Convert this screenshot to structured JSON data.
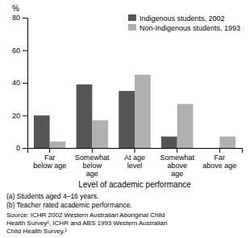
{
  "chart_data": {
    "type": "bar",
    "xlabel": "Level of academic performance",
    "ylabel": "%",
    "categories": [
      "Far\nbelow age",
      "Somewhat\nbelow\nage",
      "At age\nlevel",
      "Somewhat\nabove\nage",
      "Far\nabove age"
    ],
    "series": [
      {
        "name": "Indigenous students, 2002",
        "color": "#555555",
        "values": [
          20,
          39,
          35,
          7,
          0
        ]
      },
      {
        "name": "Non-Indigenous students, 1993",
        "color": "#b0b0b0",
        "values": [
          4,
          17,
          45,
          27,
          7
        ]
      }
    ],
    "ylim": [
      0,
      80
    ],
    "yticks": [
      0,
      20,
      40,
      60,
      80
    ],
    "grid": false,
    "legend": "upper right",
    "annotations": [
      "(a) Students aged 4–16 years.",
      "(b) Teacher rated academic performance.",
      "Source: ICHR 2002 Western Australian Aboriginal Child\nHealth Survey¹, ICHR and ABS 1993 Western Australian\nChild Health Survey.²"
    ]
  }
}
